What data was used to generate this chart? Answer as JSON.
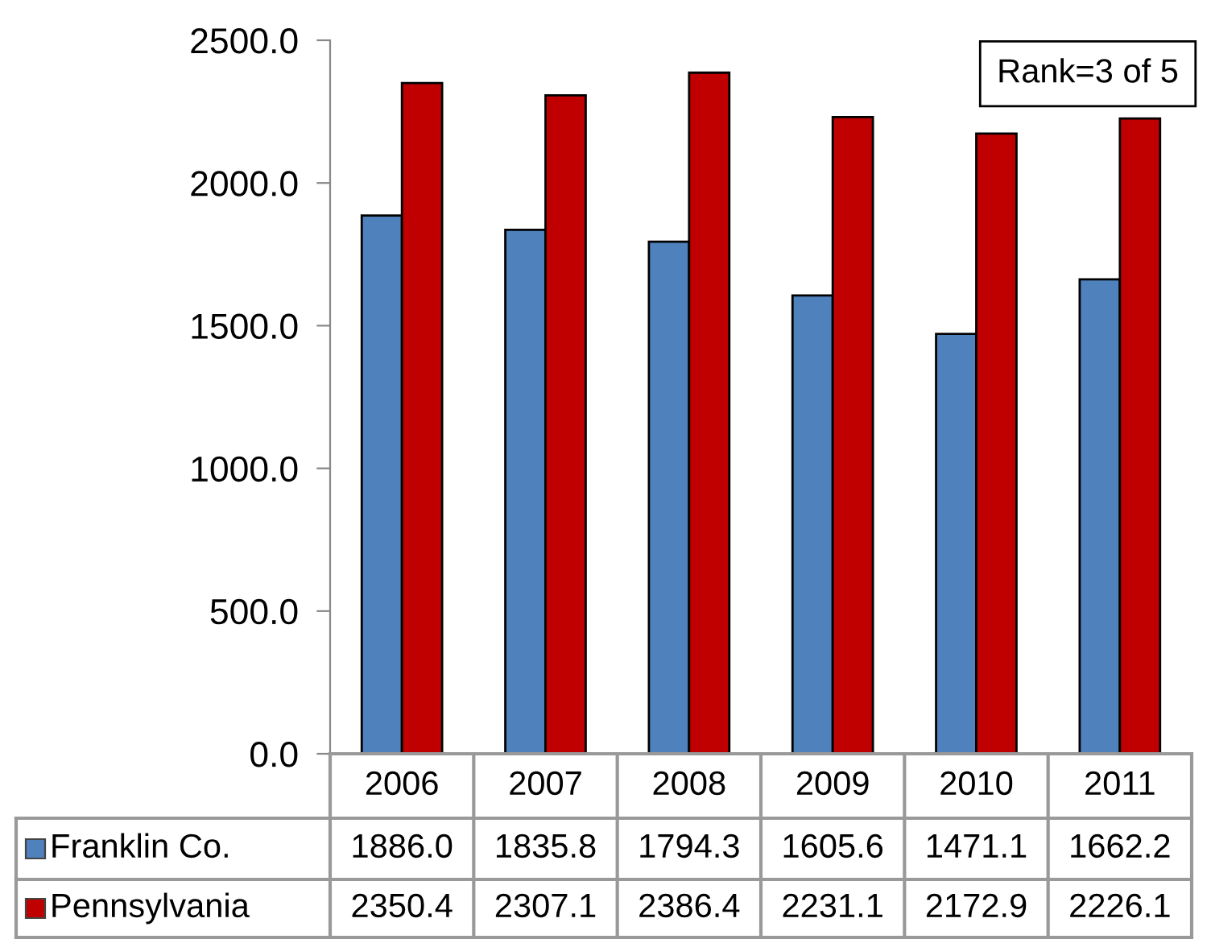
{
  "chart_data": {
    "type": "bar",
    "categories": [
      "2006",
      "2007",
      "2008",
      "2009",
      "2010",
      "2011"
    ],
    "series": [
      {
        "name": "Franklin Co.",
        "color": "#4f81bd",
        "values": [
          1886.0,
          1835.8,
          1794.3,
          1605.6,
          1471.1,
          1662.2
        ],
        "value_labels": [
          "1886.0",
          "1835.8",
          "1794.3",
          "1605.6",
          "1471.1",
          "1662.2"
        ]
      },
      {
        "name": "Pennsylvania",
        "color": "#c00000",
        "values": [
          2350.4,
          2307.1,
          2386.4,
          2231.1,
          2172.9,
          2226.1
        ],
        "value_labels": [
          "2350.4",
          "2307.1",
          "2386.4",
          "2231.1",
          "2172.9",
          "2226.1"
        ]
      }
    ],
    "ylim": [
      0,
      2500
    ],
    "yticks": [
      {
        "value": 0,
        "label": "0.0"
      },
      {
        "value": 500,
        "label": "500.0"
      },
      {
        "value": 1000,
        "label": "1000.0"
      },
      {
        "value": 1500,
        "label": "1500.0"
      },
      {
        "value": 2000,
        "label": "2000.0"
      },
      {
        "value": 2500,
        "label": "2500.0"
      }
    ],
    "annotations": [
      "Rank=3 of 5"
    ],
    "legend": "bottom",
    "grid": false
  }
}
